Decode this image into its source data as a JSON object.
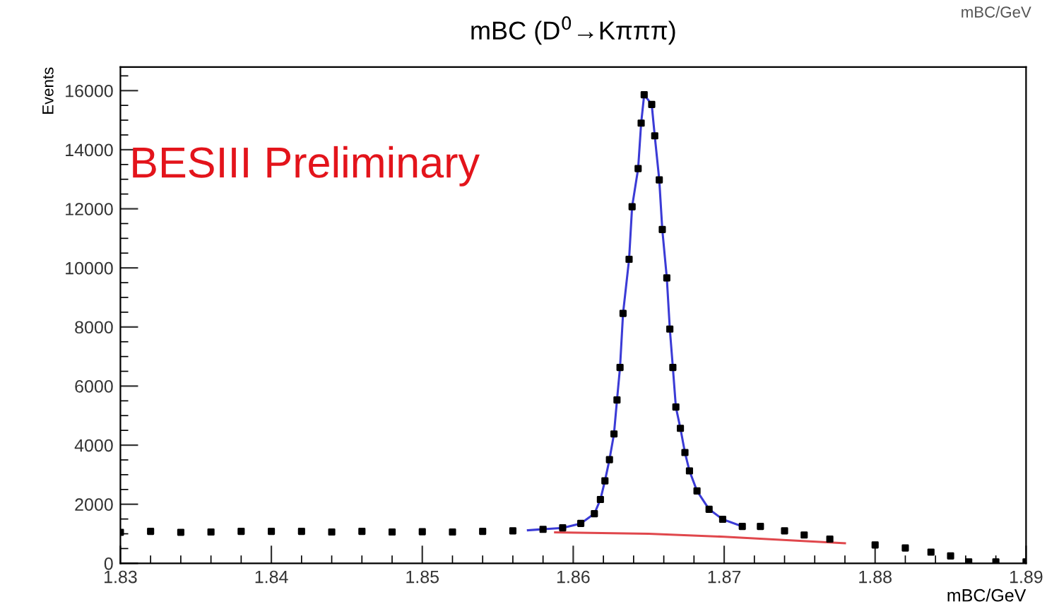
{
  "chart_data": {
    "type": "scatter",
    "title": "mBC (D$^{0}$→Kπππ)",
    "xlabel": "mBC/GeV",
    "ylabel": "Events",
    "xlim": [
      1.83,
      1.89
    ],
    "xticks": [
      1.83,
      1.84,
      1.85,
      1.86,
      1.87,
      1.88,
      1.89
    ],
    "ylim": [
      0,
      16800
    ],
    "yticks": [
      0,
      2000,
      4000,
      6000,
      8000,
      10000,
      12000,
      14000,
      16000
    ],
    "grid": false,
    "legend": false,
    "annotations": [
      "BESIII Preliminary",
      "mBC/GeV"
    ],
    "series": [
      {
        "marker": "square",
        "color": "#000000",
        "x": [
          1.83,
          1.832,
          1.834,
          1.836,
          1.838,
          1.84,
          1.842,
          1.844,
          1.846,
          1.848,
          1.85,
          1.852,
          1.854,
          1.856,
          1.858,
          1.8593,
          1.8605,
          1.8614,
          1.8618,
          1.8621,
          1.8624,
          1.8627,
          1.8629,
          1.8631,
          1.8633,
          1.8637,
          1.8639,
          1.8643,
          1.8645,
          1.8647,
          1.8652,
          1.8654,
          1.8657,
          1.8659,
          1.8662,
          1.8664,
          1.8666,
          1.8668,
          1.8671,
          1.8674,
          1.8677,
          1.8682,
          1.869,
          1.8699,
          1.8712,
          1.8724,
          1.874,
          1.8753,
          1.877,
          1.88,
          1.882,
          1.8837,
          1.885,
          1.8862,
          1.888,
          1.89
        ],
        "values": [
          1050,
          1080,
          1050,
          1060,
          1080,
          1080,
          1080,
          1060,
          1080,
          1060,
          1070,
          1060,
          1080,
          1100,
          1150,
          1200,
          1350,
          1680,
          2160,
          2790,
          3510,
          4380,
          5530,
          6630,
          8460,
          10290,
          12070,
          13360,
          14900,
          15860,
          15530,
          14470,
          12980,
          11300,
          9660,
          7930,
          6630,
          5290,
          4570,
          3750,
          3130,
          2450,
          1830,
          1490,
          1250,
          1250,
          1100,
          960,
          820,
          620,
          520,
          380,
          250,
          50,
          50,
          50
        ]
      },
      {
        "type": "line",
        "color": "#3b3bd6",
        "x": [
          1.857,
          1.8593,
          1.8605,
          1.8614,
          1.8618,
          1.8621,
          1.8624,
          1.8627,
          1.8629,
          1.8631,
          1.8633,
          1.8637,
          1.8639,
          1.8643,
          1.8645,
          1.8647,
          1.8652,
          1.8654,
          1.8657,
          1.8659,
          1.8662,
          1.8664,
          1.8666,
          1.8668,
          1.8671,
          1.8674,
          1.8677,
          1.8682,
          1.869,
          1.8699,
          1.8712
        ],
        "values": [
          1120,
          1200,
          1350,
          1680,
          2160,
          2790,
          3510,
          4380,
          5530,
          6630,
          8460,
          10290,
          12070,
          13360,
          14900,
          15860,
          15530,
          14470,
          12980,
          11300,
          9660,
          7930,
          6630,
          5290,
          4570,
          3750,
          3130,
          2450,
          1830,
          1490,
          1250
        ]
      },
      {
        "type": "line",
        "color": "#e0474c",
        "x": [
          1.8588,
          1.865,
          1.87,
          1.875,
          1.878
        ],
        "values": [
          1050,
          1000,
          900,
          760,
          680
        ]
      }
    ]
  }
}
